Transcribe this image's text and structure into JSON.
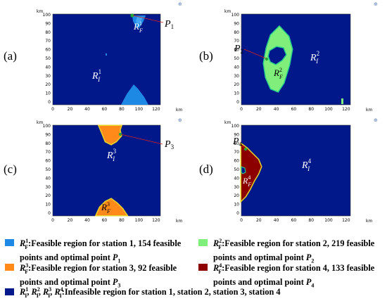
{
  "colors": {
    "background_region": "#00188a",
    "region1": "#1e88e5",
    "region2": "#80ee7a",
    "region3": "#ff8a1a",
    "region4": "#8c0000",
    "optimal_point": "#1fa83c",
    "pointer_line": "#d62020",
    "edge_green": "#2ad48c",
    "edge_yellow": "#e8d428"
  },
  "axes": {
    "unit": "km",
    "x_ticks": [
      "0",
      "20",
      "40",
      "60",
      "80",
      "100",
      "120"
    ],
    "y_ticks": [
      "0",
      "10",
      "20",
      "30",
      "40",
      "50",
      "60",
      "70",
      "80",
      "90",
      "100"
    ],
    "x_unit_label": "km",
    "y_unit_label": "km"
  },
  "panels": [
    {
      "id": "a",
      "label": "(a)",
      "point_label": "P",
      "point_sub": "1",
      "region_inf": "R",
      "region_inf_sup": "1",
      "region_inf_sub": "I",
      "region_feas": "R",
      "region_feas_sup": "1",
      "region_feas_sub": "F"
    },
    {
      "id": "b",
      "label": "(b)",
      "point_label": "P",
      "point_sub": "2",
      "region_inf": "R",
      "region_inf_sup": "2",
      "region_inf_sub": "I",
      "region_feas": "R",
      "region_feas_sup": "2",
      "region_feas_sub": "F"
    },
    {
      "id": "c",
      "label": "(c)",
      "point_label": "P",
      "point_sub": "3",
      "region_inf": "R",
      "region_inf_sup": "3",
      "region_inf_sub": "I",
      "region_feas": "R",
      "region_feas_sup": "3",
      "region_feas_sub": "F"
    },
    {
      "id": "d",
      "label": "(d)",
      "point_label": "P",
      "point_sub": "4",
      "region_inf": "R",
      "region_inf_sup": "4",
      "region_inf_sub": "I",
      "region_feas": "R",
      "region_feas_sup": "4",
      "region_feas_sub": "F"
    }
  ],
  "legend": {
    "item1_l1": "Feasible region for station 1, 154 feasible",
    "item1_l2": "points and optimal point ",
    "item2_l1": "Feasible region for station 2, 219 feasible",
    "item2_l2": "points and optimal point ",
    "item3_l1": "Feasible region for station 3, 92 feasible",
    "item3_l2": "points and optimal point ",
    "item4_l1": "Feasible region for station 4, 133 feasible",
    "item4_l2": "points and optimal point ",
    "item5": "Infeasible region for station 1, station 2, station 3, station 4",
    "sym_R": "R",
    "sym_I": "I",
    "sym_F": "F",
    "sym_P": "P",
    "n1": "1",
    "n2": "2",
    "n3": "3",
    "n4": "4",
    "colon": ":",
    "comma": ", "
  },
  "corner_icon": "⊕"
}
